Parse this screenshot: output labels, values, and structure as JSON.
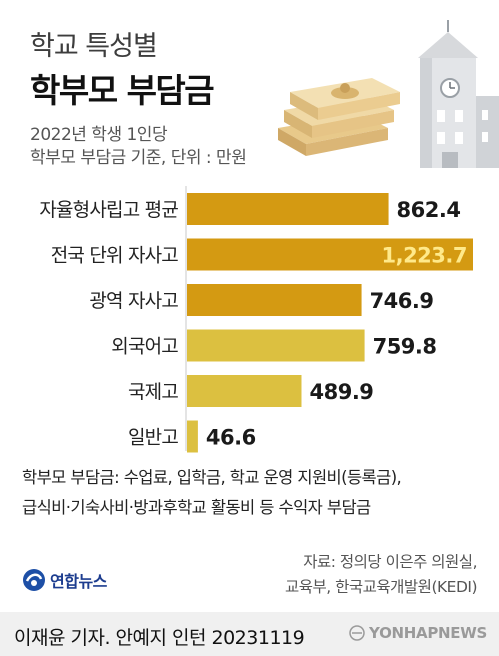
{
  "title": {
    "line1": "학교 특성별",
    "line2": "학부모 부담금"
  },
  "subtitle": {
    "line1": "2022년 학생 1인당",
    "line2": "학부모 부담금 기준, 단위 : 만원"
  },
  "colors": {
    "dark_bar": "#d49a12",
    "light_bar": "#dcc040",
    "highlight_text": "#ffe98a",
    "value_text": "#1a1a1a"
  },
  "chart_data": {
    "type": "bar",
    "orientation": "horizontal",
    "categories": [
      "자율형사립고 평균",
      "전국 단위 자사고",
      "광역 자사고",
      "외국어고",
      "국제고",
      "일반고"
    ],
    "values": [
      862.4,
      1223.7,
      746.9,
      759.8,
      489.9,
      46.6
    ],
    "value_labels": [
      "862.4",
      "1,223.7",
      "746.9",
      "759.8",
      "489.9",
      "46.6"
    ],
    "bar_colors": [
      "#d49a12",
      "#d49a12",
      "#d49a12",
      "#dcc040",
      "#dcc040",
      "#dcc040"
    ],
    "xlim": [
      0,
      1223.7
    ]
  },
  "footnote": {
    "line1": "학부모 부담금: 수업료, 입학금, 학교 운영 지원비(등록금),",
    "line2": "급식비·기숙사비·방과후학교 활동비 등 수익자 부담금"
  },
  "source": {
    "line1": "자료: 정의당 이은주 의원실,",
    "line2": "교육부, 한국교육개발원(KEDI)"
  },
  "logo": {
    "text": "연합뉴스",
    "icon": "yonhap-logo-icon"
  },
  "credit": "이재윤 기자. 안예지 인턴  20231119",
  "watermark": "YONHAPNEWS"
}
